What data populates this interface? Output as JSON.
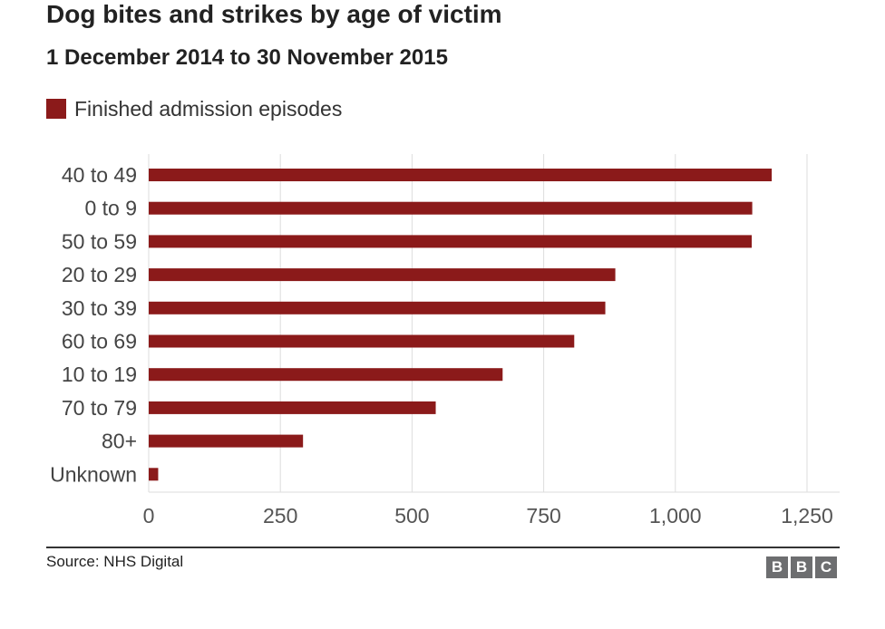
{
  "header": {
    "title": "Dog bites and strikes by age of victim",
    "subtitle": "1 December 2014 to 30 November 2015"
  },
  "footer": {
    "source": "Source: NHS Digital",
    "logo_letters": [
      "B",
      "B",
      "C"
    ]
  },
  "colors": {
    "series": "#8b1a1a",
    "grid": "#dddddd",
    "tick_text": "#555555",
    "category_text": "#444444"
  },
  "chart_data": {
    "type": "bar",
    "orientation": "horizontal",
    "categories": [
      "40 to 49",
      "0 to 9",
      "50 to 59",
      "20 to 29",
      "30 to 39",
      "60 to 69",
      "10 to 19",
      "70 to 79",
      "80+",
      "Unknown"
    ],
    "series": [
      {
        "name": "Finished admission episodes",
        "values": [
          1183,
          1146,
          1145,
          886,
          867,
          808,
          672,
          545,
          293,
          18
        ]
      }
    ],
    "xlim": [
      0,
      1250
    ],
    "xticks": [
      0,
      250,
      500,
      750,
      1000,
      1250
    ],
    "xtick_labels": [
      "0",
      "250",
      "500",
      "750",
      "1,000",
      "1,250"
    ],
    "grid": true,
    "legend_position": "top-left"
  }
}
